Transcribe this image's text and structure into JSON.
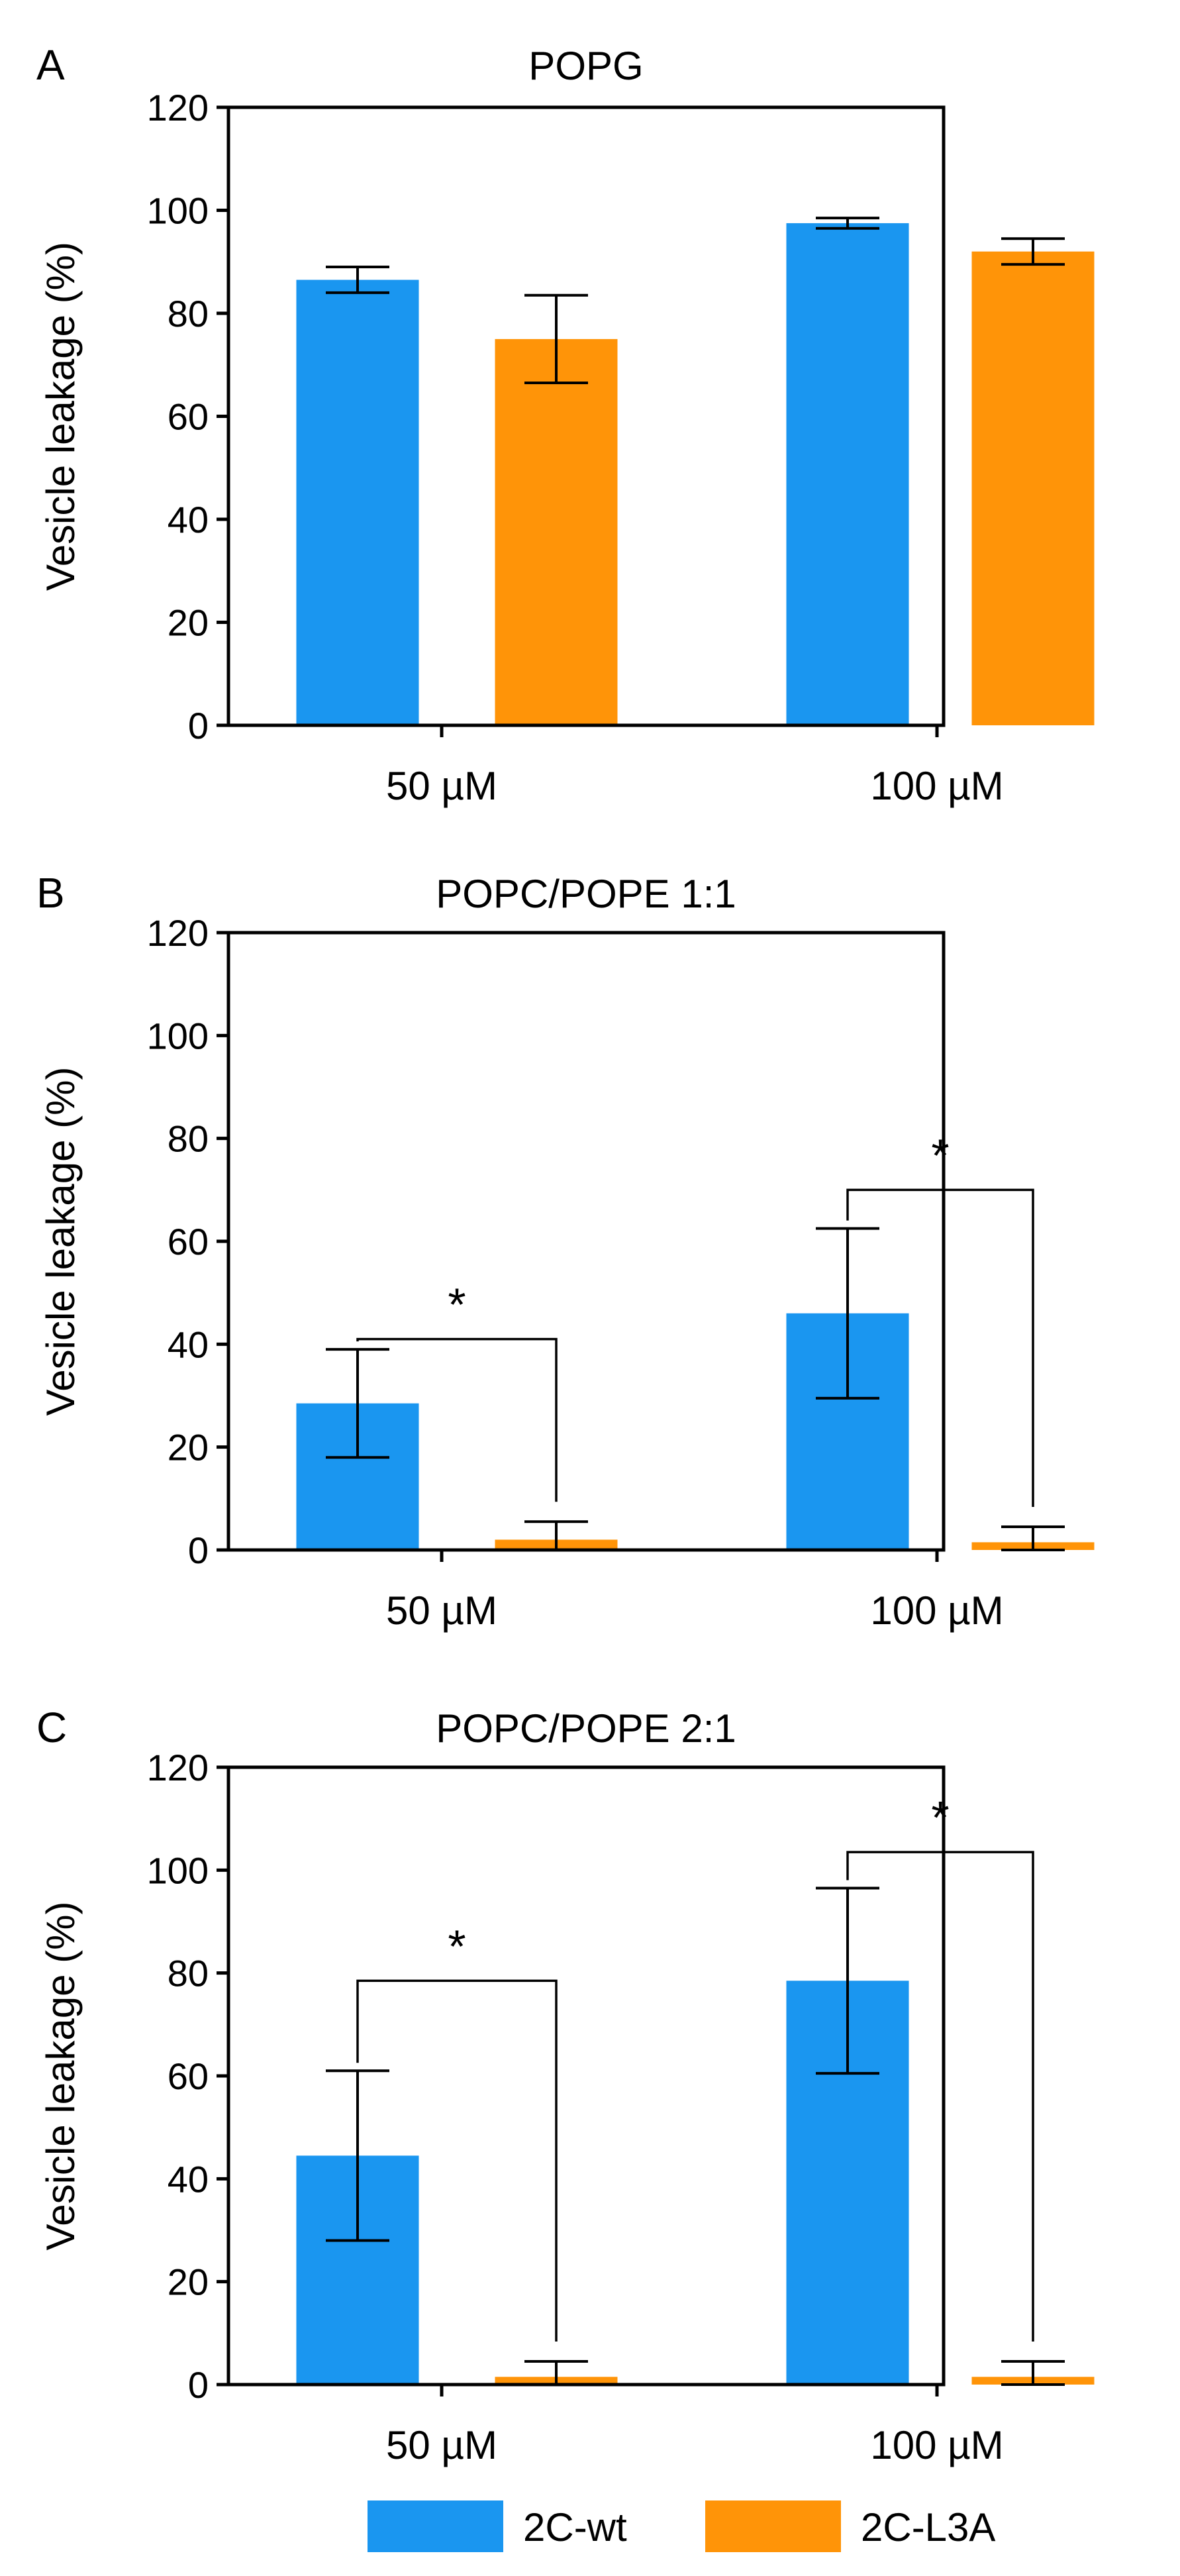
{
  "colors": {
    "wt": "#1a96f0",
    "l3a": "#ff9408"
  },
  "legend": [
    {
      "name": "2C-wt",
      "color": "#1a96f0"
    },
    {
      "name": "2C-L3A",
      "color": "#ff9408"
    }
  ],
  "chart_data": [
    {
      "type": "bar",
      "panel": "A",
      "title": "POPG",
      "ylabel": "Vesicle leakage (%)",
      "xlabel": "",
      "ylim": [
        0,
        120
      ],
      "yticks": [
        0,
        20,
        40,
        60,
        80,
        100,
        120
      ],
      "categories": [
        "50 µM",
        "100 µM"
      ],
      "series": [
        {
          "name": "2C-wt",
          "values": [
            86.5,
            97.5
          ],
          "errors": [
            2.5,
            1.0
          ]
        },
        {
          "name": "2C-L3A",
          "values": [
            75,
            92
          ],
          "errors": [
            8.5,
            2.5
          ]
        }
      ],
      "significance": []
    },
    {
      "type": "bar",
      "panel": "B",
      "title": "POPC/POPE 1:1",
      "ylabel": "Vesicle leakage (%)",
      "xlabel": "",
      "ylim": [
        0,
        120
      ],
      "yticks": [
        0,
        20,
        40,
        60,
        80,
        100,
        120
      ],
      "categories": [
        "50 µM",
        "100 µM"
      ],
      "series": [
        {
          "name": "2C-wt",
          "values": [
            28.5,
            46
          ],
          "errors": [
            10.5,
            16.5
          ]
        },
        {
          "name": "2C-L3A",
          "values": [
            2,
            1.5
          ],
          "errors": [
            3.5,
            3
          ]
        }
      ],
      "significance": [
        {
          "category_index": 0,
          "label": "*",
          "y_data": 41
        },
        {
          "category_index": 1,
          "label": "*",
          "y_data": 70
        }
      ]
    },
    {
      "type": "bar",
      "panel": "C",
      "title": "POPC/POPE 2:1",
      "ylabel": "Vesicle leakage (%)",
      "xlabel": "",
      "ylim": [
        0,
        120
      ],
      "yticks": [
        0,
        20,
        40,
        60,
        80,
        100,
        120
      ],
      "categories": [
        "50 µM",
        "100 µM"
      ],
      "series": [
        {
          "name": "2C-wt",
          "values": [
            44.5,
            78.5
          ],
          "errors": [
            16.5,
            18
          ]
        },
        {
          "name": "2C-L3A",
          "values": [
            1.5,
            1.5
          ],
          "errors": [
            3,
            3
          ]
        }
      ],
      "significance": [
        {
          "category_index": 0,
          "label": "*",
          "y_data": 78.5
        },
        {
          "category_index": 1,
          "label": "*",
          "y_data": 103.5
        }
      ]
    }
  ]
}
